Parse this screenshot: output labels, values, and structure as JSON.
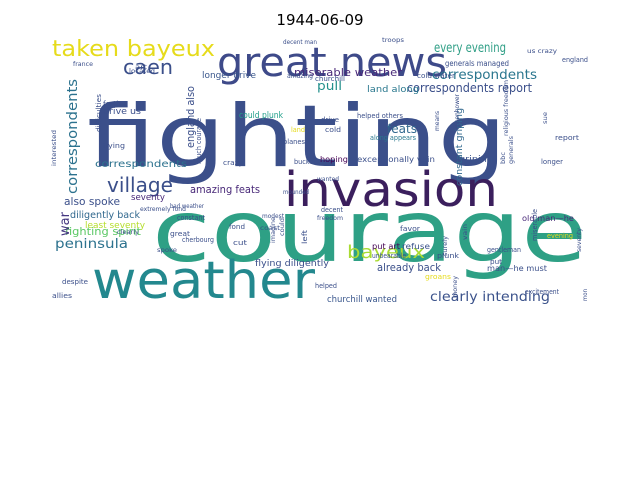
{
  "title": "1944-06-09",
  "words": [
    {
      "text": "fighting",
      "color": "#3b4f8a"
    },
    {
      "text": "courage",
      "color": "#2ea085"
    },
    {
      "text": "weather",
      "color": "#23888e"
    },
    {
      "text": "invasion",
      "color": "#3b1f5d"
    },
    {
      "text": "great news",
      "color": "#3e4a89"
    },
    {
      "text": "taken bayeux",
      "color": "#e6db1b"
    },
    {
      "text": "village",
      "color": "#3b4f8a"
    },
    {
      "text": "caen",
      "color": "#3b4f8a"
    },
    {
      "text": "bayeux",
      "color": "#a9db33"
    },
    {
      "text": "correspondents",
      "color": "#2c728e"
    },
    {
      "text": "every evening",
      "color": "#2a768e"
    },
    {
      "text": "intending",
      "color": "#2e9e85"
    },
    {
      "text": "clearly intending",
      "color": "#3b528b"
    },
    {
      "text": "peninsula",
      "color": "#2c728e"
    },
    {
      "text": "correspondents report",
      "color": "#3b4f8a"
    },
    {
      "text": "miserable weather",
      "color": "#482878"
    },
    {
      "text": "amazing feats",
      "color": "#482878"
    },
    {
      "text": "also spoke",
      "color": "#3b4f8a"
    },
    {
      "text": "fighting spirit",
      "color": "#5ac864"
    },
    {
      "text": "already back",
      "color": "#3b4f8a"
    },
    {
      "text": "pull",
      "color": "#22908c"
    },
    {
      "text": "feats",
      "color": "#31688e"
    },
    {
      "text": "land along",
      "color": "#2a788e"
    },
    {
      "text": "war",
      "color": "#453781"
    },
    {
      "text": "england also",
      "color": "#3b4f8a"
    },
    {
      "text": "longer drive",
      "color": "#39568c"
    },
    {
      "text": "drive us",
      "color": "#3b4f8a"
    },
    {
      "text": "seventy",
      "color": "#482878"
    },
    {
      "text": "diligently back",
      "color": "#31688e"
    },
    {
      "text": "least seventy",
      "color": "#b5de2b"
    },
    {
      "text": "flying diligently",
      "color": "#3b4f8a"
    },
    {
      "text": "churchill wanted",
      "color": "#39568c"
    },
    {
      "text": "could plunk",
      "color": "#1f9e89"
    },
    {
      "text": "hoping",
      "color": "#440154"
    },
    {
      "text": "exceptionally vain",
      "color": "#3b4f8a"
    },
    {
      "text": "griping",
      "color": "#3b528b"
    },
    {
      "text": "constant griping",
      "color": "#31688e"
    },
    {
      "text": "man—he must",
      "color": "#3b4f8a"
    },
    {
      "text": "old man—he",
      "color": "#482878"
    },
    {
      "text": "generals managed",
      "color": "#3b4f8a"
    },
    {
      "text": "cold water",
      "color": "#3b4f8a"
    },
    {
      "text": "put art",
      "color": "#440154"
    },
    {
      "text": "refuse",
      "color": "#3b528b"
    },
    {
      "text": "crazy",
      "color": "#3b4f8a"
    },
    {
      "text": "planes",
      "color": "#3b4f8a"
    },
    {
      "text": "bucket",
      "color": "#3b4f8a"
    },
    {
      "text": "helped others",
      "color": "#3b4f8a"
    },
    {
      "text": "along appears",
      "color": "#2a788e"
    },
    {
      "text": "amazing",
      "color": "#3b4f8a"
    },
    {
      "text": "churchill",
      "color": "#3b4f8a"
    },
    {
      "text": "troops",
      "color": "#3b4f8a"
    },
    {
      "text": "fighting spirit",
      "color": "#5ac864"
    },
    {
      "text": "difficulties",
      "color": "#3b4f8a"
    },
    {
      "text": "flying",
      "color": "#3b4f8a"
    },
    {
      "text": "much courage",
      "color": "#3b4f8a"
    },
    {
      "text": "drive",
      "color": "#3b4f8a"
    },
    {
      "text": "cold",
      "color": "#3b4f8a"
    },
    {
      "text": "land",
      "color": "#e6db1b"
    },
    {
      "text": "gentleman",
      "color": "#3b4f8a"
    },
    {
      "text": "unbearable",
      "color": "#3b4f8a"
    },
    {
      "text": "cherbourg",
      "color": "#3b4f8a"
    },
    {
      "text": "constant",
      "color": "#3b4f8a"
    },
    {
      "text": "decent",
      "color": "#3b4f8a"
    },
    {
      "text": "fond",
      "color": "#3b4f8a"
    },
    {
      "text": "great",
      "color": "#3b4f8a"
    },
    {
      "text": "left",
      "color": "#3b4f8a"
    },
    {
      "text": "despite",
      "color": "#3b4f8a"
    },
    {
      "text": "allies",
      "color": "#3b4f8a"
    },
    {
      "text": "helped",
      "color": "#3b4f8a"
    },
    {
      "text": "plunk",
      "color": "#3b4f8a"
    },
    {
      "text": "groans",
      "color": "#e6db1b"
    },
    {
      "text": "money",
      "color": "#3b4f8a"
    },
    {
      "text": "put",
      "color": "#3b4f8a"
    },
    {
      "text": "longer",
      "color": "#3b4f8a"
    },
    {
      "text": "report",
      "color": "#3b4f8a"
    },
    {
      "text": "miserable",
      "color": "#3b4f8a"
    },
    {
      "text": "evening",
      "color": "#e6db1b"
    },
    {
      "text": "excitement",
      "color": "#3b4f8a"
    },
    {
      "text": "religious freedom",
      "color": "#3b4f8a"
    },
    {
      "text": "england",
      "color": "#3b4f8a"
    },
    {
      "text": "france",
      "color": "#3b4f8a"
    },
    {
      "text": "forth",
      "color": "#3b4f8a"
    },
    {
      "text": "located",
      "color": "#3b4f8a"
    },
    {
      "text": "eisenhower",
      "color": "#3b4f8a"
    },
    {
      "text": "bbc",
      "color": "#3b4f8a"
    },
    {
      "text": "means",
      "color": "#3b4f8a"
    },
    {
      "text": "extremely fond",
      "color": "#3b4f8a"
    },
    {
      "text": "bad weather",
      "color": "#3b4f8a"
    },
    {
      "text": "clearly",
      "color": "#3b4f8a"
    },
    {
      "text": "interested",
      "color": "#3b4f8a"
    },
    {
      "text": "modest",
      "color": "#3b4f8a"
    },
    {
      "text": "mounded",
      "color": "#3b4f8a"
    },
    {
      "text": "decent man",
      "color": "#3b4f8a"
    },
    {
      "text": "freedom",
      "color": "#3b4f8a"
    },
    {
      "text": "favor",
      "color": "#3b4f8a"
    },
    {
      "text": "coast",
      "color": "#3b4f8a"
    },
    {
      "text": "imagine",
      "color": "#3b4f8a"
    },
    {
      "text": "could",
      "color": "#3b4f8a"
    },
    {
      "text": "cut",
      "color": "#3b4f8a"
    },
    {
      "text": "spoke",
      "color": "#3b4f8a"
    },
    {
      "text": "surely",
      "color": "#3b4f8a"
    },
    {
      "text": "art",
      "color": "#3b4f8a"
    },
    {
      "text": "generals",
      "color": "#3b4f8a"
    },
    {
      "text": "us crazy",
      "color": "#3b4f8a"
    },
    {
      "text": "vain",
      "color": "#3b4f8a"
    },
    {
      "text": "seventy",
      "color": "#3b4f8a"
    },
    {
      "text": "wanted",
      "color": "#3b4f8a"
    },
    {
      "text": "sue",
      "color": "#3b4f8a"
    },
    {
      "text": "mon",
      "color": "#3b4f8a"
    }
  ]
}
